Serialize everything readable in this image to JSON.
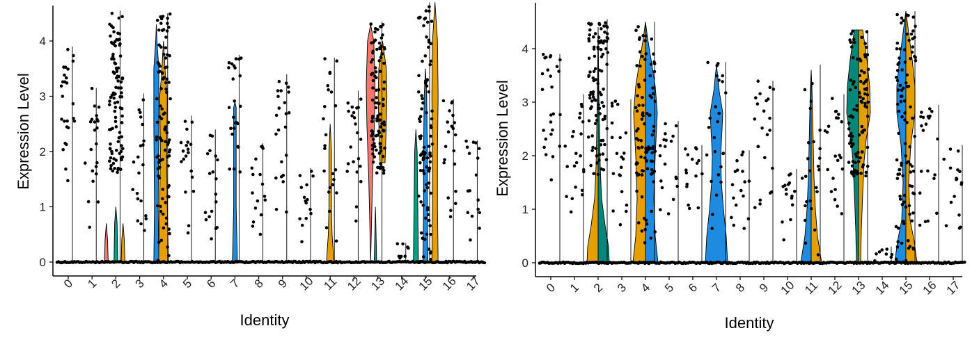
{
  "chart_data": [
    {
      "type": "violin",
      "title": "",
      "xlabel": "Identity",
      "ylabel": "Expression Level",
      "categories": [
        "0",
        "1",
        "2",
        "3",
        "4",
        "5",
        "6",
        "7",
        "8",
        "9",
        "10",
        "11",
        "12",
        "13",
        "14",
        "15",
        "16",
        "17"
      ],
      "yticks": [
        "0",
        "1",
        "2",
        "3",
        "4"
      ],
      "ylim": [
        -0.2,
        4.75
      ],
      "split_groups": 3,
      "grid": false,
      "legend": "none",
      "max_values": [
        3.9,
        3.15,
        4.55,
        3.05,
        4.5,
        2.65,
        2.4,
        3.75,
        2.15,
        3.4,
        1.7,
        3.7,
        3.1,
        4.35,
        0.35,
        4.7,
        2.95,
        2.2
      ],
      "groups_present": [
        [
          "teal"
        ],
        [
          "teal"
        ],
        [
          "salmon",
          "teal",
          "orange"
        ],
        [
          "teal"
        ],
        [
          "salmon",
          "blue",
          "orange"
        ],
        [
          "teal"
        ],
        [
          "teal"
        ],
        [
          "blue"
        ],
        [
          "teal"
        ],
        [
          "teal"
        ],
        [
          "teal"
        ],
        [
          "salmon",
          "blue",
          "orange"
        ],
        [
          "teal"
        ],
        [
          "salmon",
          "teal",
          "orange"
        ],
        [
          "teal"
        ],
        [
          "teal",
          "blue",
          "orange"
        ],
        [
          "teal"
        ],
        [
          "teal"
        ]
      ],
      "colors": {
        "salmon": "#f8766d",
        "teal": "#00a087",
        "blue": "#1f8be0",
        "orange": "#e69f00"
      }
    },
    {
      "type": "violin",
      "title": "",
      "xlabel": "Identity",
      "ylabel": "Expression Level",
      "categories": [
        "0",
        "1",
        "2",
        "3",
        "4",
        "5",
        "6",
        "7",
        "8",
        "9",
        "10",
        "11",
        "12",
        "13",
        "14",
        "15",
        "16",
        "17"
      ],
      "yticks": [
        "0",
        "1",
        "2",
        "3",
        "4"
      ],
      "ylim": [
        -0.2,
        4.75
      ],
      "grid": false,
      "legend": "none",
      "max_values": [
        3.9,
        3.15,
        4.55,
        3.05,
        4.5,
        2.65,
        2.2,
        3.75,
        2.1,
        3.4,
        1.75,
        3.7,
        3.15,
        4.35,
        0.3,
        4.7,
        2.95,
        2.2
      ],
      "colors": {
        "teal": "#00897b",
        "blue": "#1f8be0",
        "orange": "#e69f00",
        "salmon": "#f8766d"
      }
    }
  ]
}
